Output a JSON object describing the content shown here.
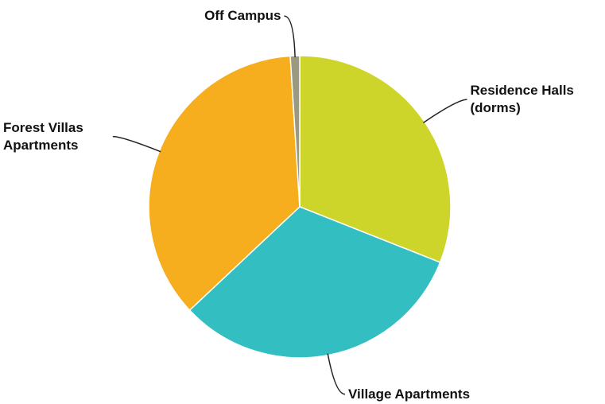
{
  "chart_data": {
    "type": "pie",
    "categories": [
      "Residence Halls (dorms)",
      "Village Apartments",
      "Forest Villas Apartments",
      "Off Campus"
    ],
    "values": [
      31,
      32,
      36,
      1
    ],
    "colors": [
      "#cdd42a",
      "#33bfc1",
      "#f6ae1e",
      "#9b9a80"
    ]
  }
}
